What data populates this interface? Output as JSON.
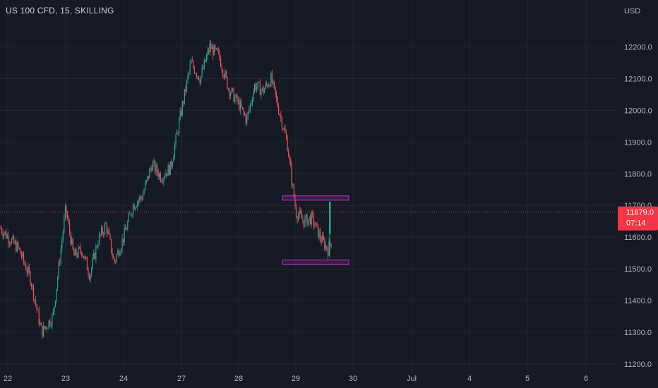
{
  "header": {
    "symbol_title": "US 100 CFD, 15, SKILLING"
  },
  "price_axis": {
    "currency": "USD"
  },
  "last_price": {
    "value_label": "11679.0",
    "countdown": "07:14",
    "color": "#f23645"
  },
  "colors": {
    "background": "#161a25",
    "grid": "#232733",
    "up": "#26a69a",
    "down": "#ef5350",
    "box": "#c837c8",
    "text": "#b2b5be"
  },
  "chart_data": {
    "type": "candlestick",
    "title": "US 100 CFD, 15, SKILLING",
    "y_unit": "USD",
    "ylim": [
      11180,
      12330
    ],
    "y_ticks": [
      11200,
      11300,
      11400,
      11500,
      11600,
      11700,
      11800,
      11900,
      12000,
      12100,
      12200
    ],
    "y_tick_labels": [
      "11200.0",
      "11300.0",
      "11400.0",
      "11500.0",
      "11600.0",
      "11700.0",
      "11800.0",
      "11900.0",
      "12000.0",
      "12100.0",
      "12200.0"
    ],
    "x_ticks": [
      "22",
      "23",
      "24",
      "27",
      "28",
      "29",
      "30",
      "Jul",
      "4",
      "5",
      "6"
    ],
    "grid": true,
    "last_value": 11679.0,
    "price_path": [
      [
        "22",
        11630
      ],
      [
        "22",
        11560
      ],
      [
        "22",
        11470
      ],
      [
        "22",
        11300
      ],
      [
        "22",
        11350
      ],
      [
        "23",
        11690
      ],
      [
        "23",
        11540
      ],
      [
        "23",
        11560
      ],
      [
        "23",
        11480
      ],
      [
        "23",
        11590
      ],
      [
        "23",
        11640
      ],
      [
        "23",
        11520
      ],
      [
        "24",
        11600
      ],
      [
        "24",
        11700
      ],
      [
        "24",
        11730
      ],
      [
        "24",
        11830
      ],
      [
        "24",
        11790
      ],
      [
        "24",
        11820
      ],
      [
        "27",
        12000
      ],
      [
        "27",
        12150
      ],
      [
        "27",
        12100
      ],
      [
        "27",
        12200
      ],
      [
        "27",
        12170
      ],
      [
        "27",
        12070
      ],
      [
        "28",
        12020
      ],
      [
        "28",
        11970
      ],
      [
        "28",
        12080
      ],
      [
        "28",
        12060
      ],
      [
        "28",
        12100
      ],
      [
        "28",
        12000
      ],
      [
        "28",
        11900
      ],
      [
        "29",
        11680
      ],
      [
        "29",
        11650
      ],
      [
        "29",
        11660
      ],
      [
        "29",
        11600
      ],
      [
        "29",
        11560
      ],
      [
        "29",
        11640
      ],
      [
        "29",
        11679
      ]
    ],
    "annotations": [
      {
        "type": "rectangle",
        "day": "29",
        "y_range": [
          11717,
          11730
        ]
      },
      {
        "type": "rectangle",
        "day": "29",
        "y_range": [
          11520,
          11528
        ]
      }
    ]
  }
}
